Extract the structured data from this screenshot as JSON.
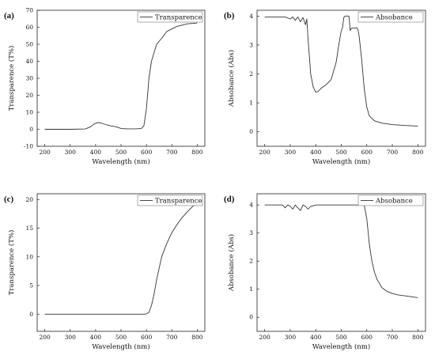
{
  "chart_data": [
    {
      "panel": "(a)",
      "type": "line",
      "xlabel": "Wavelength (nm)",
      "ylabel": "Transparence (T%)",
      "xlim": [
        170,
        830
      ],
      "ylim": [
        -10,
        70
      ],
      "xticks": [
        200,
        300,
        400,
        500,
        600,
        700,
        800
      ],
      "yticks": [
        -10,
        0,
        10,
        20,
        30,
        40,
        50,
        60,
        70
      ],
      "legend_position": "top-right",
      "grid": false,
      "series": [
        {
          "name": "Transparence",
          "color": "#333333",
          "x": [
            200,
            300,
            360,
            380,
            395,
            410,
            420,
            440,
            460,
            480,
            500,
            520,
            540,
            560,
            580,
            590,
            600,
            610,
            620,
            640,
            660,
            680,
            700,
            720,
            760,
            800
          ],
          "y": [
            0,
            0,
            0.2,
            1.5,
            3.2,
            4.0,
            3.7,
            2.8,
            2.0,
            1.5,
            0.5,
            0.3,
            0.3,
            0.3,
            0.5,
            2.0,
            12,
            30,
            40,
            50,
            53.5,
            57.5,
            59,
            60.5,
            62,
            62.5
          ]
        }
      ]
    },
    {
      "panel": "(b)",
      "type": "line",
      "xlabel": "Wavelength (nm)",
      "ylabel": "Absobance (Abs)",
      "xlim": [
        170,
        830
      ],
      "ylim": [
        -0.5,
        4.2
      ],
      "xticks": [
        200,
        300,
        400,
        500,
        600,
        700,
        800
      ],
      "yticks": [
        0,
        1,
        2,
        3,
        4
      ],
      "legend_position": "top-right",
      "grid": false,
      "series": [
        {
          "name": "Absobance",
          "color": "#333333",
          "x": [
            200,
            280,
            300,
            310,
            320,
            330,
            340,
            350,
            360,
            365,
            370,
            375,
            380,
            390,
            400,
            410,
            420,
            440,
            460,
            480,
            490,
            500,
            505,
            510,
            515,
            520,
            530,
            535,
            540,
            550,
            560,
            565,
            570,
            580,
            590,
            600,
            610,
            630,
            660,
            700,
            750,
            800
          ],
          "y": [
            3.97,
            3.97,
            3.9,
            3.97,
            3.85,
            3.97,
            3.8,
            3.95,
            3.7,
            3.9,
            3.2,
            2.6,
            2.0,
            1.55,
            1.37,
            1.4,
            1.5,
            1.62,
            1.8,
            2.4,
            3.0,
            3.5,
            3.6,
            3.95,
            4.0,
            4.0,
            4.0,
            3.5,
            3.58,
            3.58,
            3.6,
            3.55,
            3.3,
            2.5,
            1.5,
            0.85,
            0.55,
            0.38,
            0.3,
            0.25,
            0.22,
            0.2
          ]
        }
      ]
    },
    {
      "panel": "(c)",
      "type": "line",
      "xlabel": "Wavelength (nm)",
      "ylabel": "Transparence (T%)",
      "xlim": [
        170,
        830
      ],
      "ylim": [
        -3,
        21
      ],
      "xticks": [
        200,
        300,
        400,
        500,
        600,
        700,
        800
      ],
      "yticks": [
        0,
        5,
        10,
        15,
        20
      ],
      "legend_position": "top-right",
      "grid": false,
      "series": [
        {
          "name": "Transparence",
          "color": "#333333",
          "x": [
            200,
            300,
            400,
            500,
            590,
            600,
            610,
            620,
            630,
            640,
            650,
            660,
            680,
            700,
            720,
            740,
            760,
            780,
            800
          ],
          "y": [
            0,
            0,
            0,
            0,
            0,
            0.05,
            0.3,
            1.5,
            3.5,
            6.0,
            8.0,
            10.0,
            12.3,
            14.2,
            15.6,
            16.8,
            17.8,
            18.7,
            19.4
          ]
        }
      ]
    },
    {
      "panel": "(d)",
      "type": "line",
      "xlabel": "Wavelength (nm)",
      "ylabel": "Absobance (Abs)",
      "xlim": [
        170,
        830
      ],
      "ylim": [
        -0.5,
        4.4
      ],
      "xticks": [
        200,
        300,
        400,
        500,
        600,
        700,
        800
      ],
      "yticks": [
        0,
        1,
        2,
        3,
        4
      ],
      "legend_position": "top-right",
      "grid": false,
      "series": [
        {
          "name": "Absobance",
          "color": "#333333",
          "x": [
            200,
            270,
            280,
            290,
            300,
            310,
            320,
            330,
            340,
            350,
            360,
            370,
            380,
            390,
            400,
            500,
            590,
            600,
            610,
            620,
            630,
            640,
            660,
            680,
            700,
            720,
            760,
            800
          ],
          "y": [
            4.0,
            4.0,
            3.9,
            4.0,
            3.95,
            3.85,
            4.0,
            3.9,
            3.8,
            4.0,
            3.95,
            3.85,
            3.95,
            3.97,
            4.0,
            4.0,
            4.0,
            3.5,
            2.6,
            2.0,
            1.6,
            1.35,
            1.05,
            0.92,
            0.85,
            0.8,
            0.75,
            0.7
          ]
        }
      ]
    }
  ]
}
